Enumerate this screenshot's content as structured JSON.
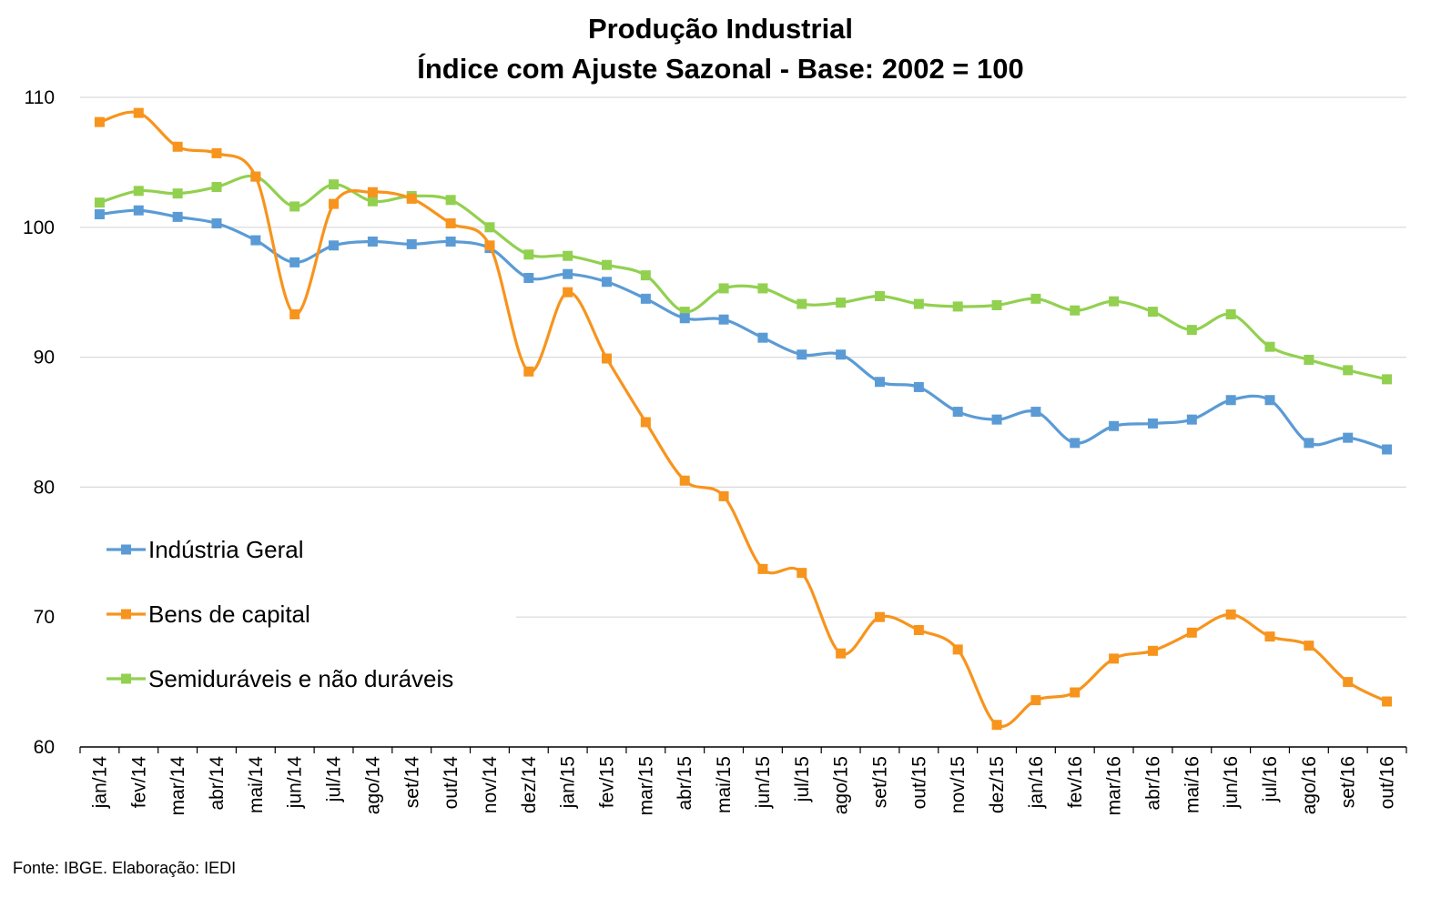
{
  "chart_data": {
    "type": "line",
    "title": "Produção Industrial",
    "subtitle": "Índice com Ajuste Sazonal - Base: 2002 = 100",
    "categories": [
      "jan/14",
      "fev/14",
      "mar/14",
      "abr/14",
      "mai/14",
      "jun/14",
      "jul/14",
      "ago/14",
      "set/14",
      "out/14",
      "nov/14",
      "dez/14",
      "jan/15",
      "fev/15",
      "mar/15",
      "abr/15",
      "mai/15",
      "jun/15",
      "jul/15",
      "ago/15",
      "set/15",
      "out/15",
      "nov/15",
      "dez/15",
      "jan/16",
      "fev/16",
      "mar/16",
      "abr/16",
      "mai/16",
      "jun/16",
      "jul/16",
      "ago/16",
      "set/16",
      "out/16"
    ],
    "series": [
      {
        "name": "Indústria Geral",
        "color": "#5b9bd5",
        "values": [
          101.0,
          101.3,
          100.8,
          100.3,
          99.0,
          97.3,
          98.6,
          98.9,
          98.7,
          98.9,
          98.4,
          96.1,
          96.4,
          95.8,
          94.5,
          93.0,
          92.9,
          91.5,
          90.2,
          90.2,
          88.1,
          87.7,
          85.8,
          85.2,
          85.8,
          83.4,
          84.7,
          84.9,
          85.2,
          86.7,
          86.7,
          83.4,
          83.8,
          82.9
        ]
      },
      {
        "name": "Bens de capital",
        "color": "#f7941d",
        "values": [
          108.1,
          108.8,
          106.2,
          105.7,
          103.9,
          93.3,
          101.8,
          102.7,
          102.2,
          100.3,
          98.6,
          88.9,
          95.0,
          89.9,
          85.0,
          80.5,
          79.3,
          73.7,
          73.4,
          67.2,
          70.0,
          69.0,
          67.5,
          61.7,
          63.6,
          64.2,
          66.8,
          67.4,
          68.8,
          70.2,
          68.5,
          67.8,
          65.0,
          63.5
        ]
      },
      {
        "name": "Semiduráveis e não duráveis",
        "color": "#92d050",
        "values": [
          101.9,
          102.8,
          102.6,
          103.1,
          103.9,
          101.6,
          103.3,
          102.0,
          102.4,
          102.1,
          100.0,
          97.9,
          97.8,
          97.1,
          96.3,
          93.5,
          95.3,
          95.3,
          94.1,
          94.2,
          94.7,
          94.1,
          93.9,
          94.0,
          94.5,
          93.6,
          94.3,
          93.5,
          92.1,
          93.3,
          90.8,
          89.8,
          89.0,
          88.3
        ]
      }
    ],
    "ylim": [
      60,
      110
    ],
    "yticks": [
      "60",
      "70",
      "80",
      "90",
      "100",
      "110"
    ],
    "grid": true,
    "legend_position": "left"
  },
  "source_note": "Fonte: IBGE. Elaboração: IEDI"
}
